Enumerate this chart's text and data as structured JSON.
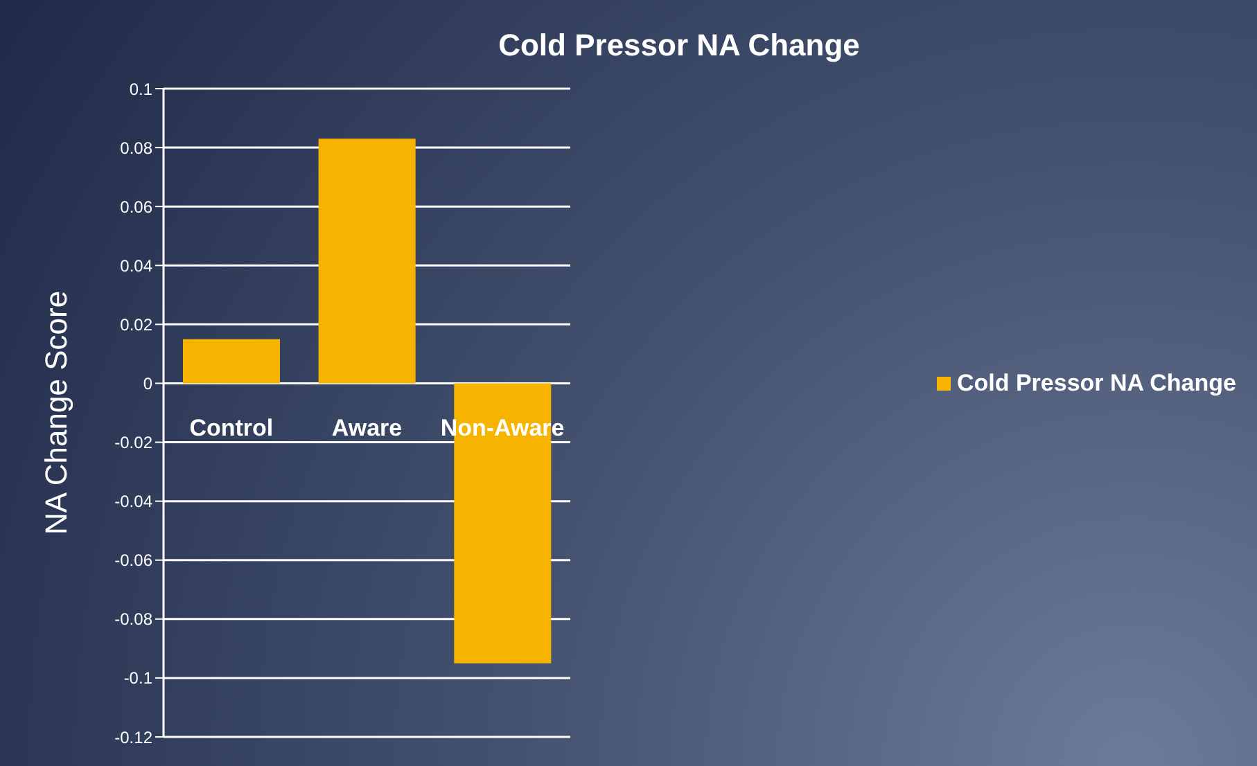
{
  "chart_data": {
    "type": "bar",
    "title": "Cold Pressor NA Change",
    "ylabel": "NA Change Score",
    "categories": [
      "Control",
      "Aware",
      "Non-Aware"
    ],
    "series": [
      {
        "name": "Cold Pressor NA Change",
        "color": "#f6b400",
        "values": [
          0.015,
          0.083,
          -0.095
        ]
      }
    ],
    "ylim": [
      -0.12,
      0.1
    ],
    "yticks": [
      -0.12,
      -0.1,
      -0.08,
      -0.06,
      -0.04,
      -0.02,
      0,
      0.02,
      0.04,
      0.06,
      0.08,
      0.1
    ],
    "grid": "y",
    "legend": "right"
  }
}
